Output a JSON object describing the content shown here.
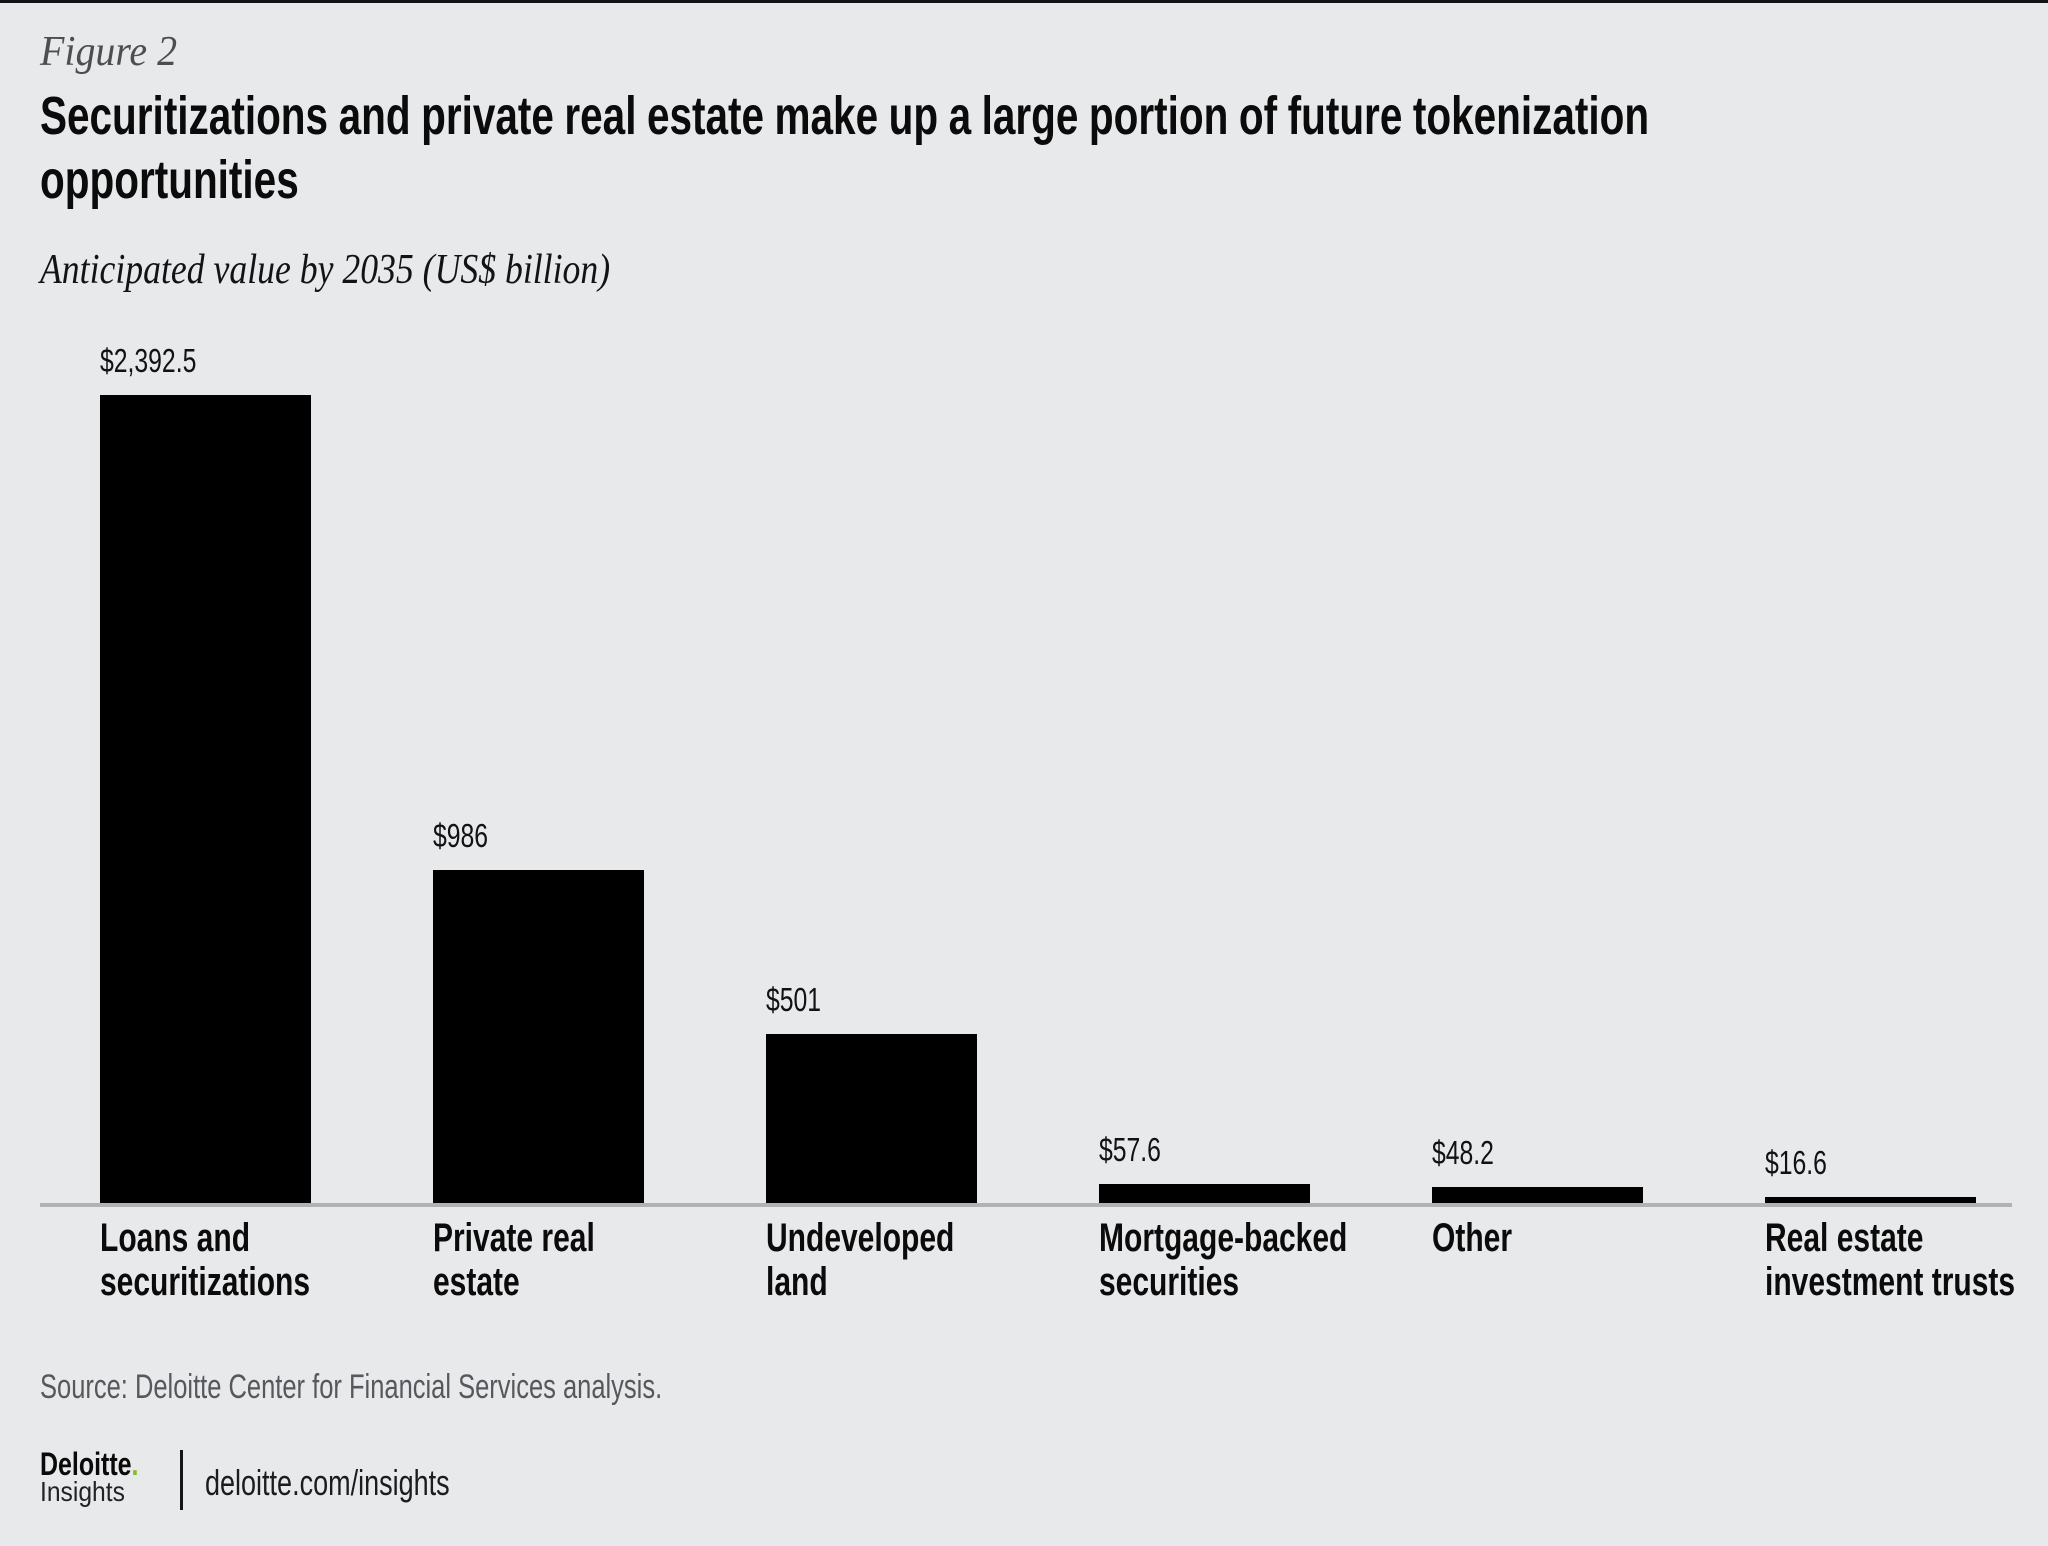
{
  "figure_label": "Figure 2",
  "title": "Securitizations and private real estate make up a large portion of future tokenization opportunities",
  "subtitle": "Anticipated value by 2035 (US$ billion)",
  "chart_data": {
    "type": "bar",
    "title": "Securitizations and private real estate make up a large portion of future tokenization opportunities",
    "subtitle": "Anticipated value by 2035 (US$ billion)",
    "categories": [
      "Loans and securitizations",
      "Private real estate",
      "Undeveloped land",
      "Mortgage-backed securities",
      "Other",
      "Real estate investment trusts"
    ],
    "category_lines": [
      [
        "Loans and",
        "securitizations"
      ],
      [
        "Private real",
        "estate"
      ],
      [
        "Undeveloped",
        "land"
      ],
      [
        "Mortgage-backed",
        "securities"
      ],
      [
        "Other"
      ],
      [
        "Real estate",
        "investment trusts"
      ]
    ],
    "values": [
      2392.5,
      986,
      501,
      57.6,
      48.2,
      16.6
    ],
    "value_labels": [
      "$2,392.5",
      "$986",
      "$501",
      "$57.6",
      "$48.2",
      "$16.6"
    ],
    "xlabel": "",
    "ylabel": "Anticipated value by 2035 (US$ billion)",
    "ylim": [
      0,
      2392.5
    ],
    "bar_color": "#000000",
    "background_color": "#e8e9ea",
    "axis_color": "#b0b2b4",
    "grid": false,
    "legend": false,
    "value_label_position": "above-bar, left-aligned"
  },
  "source": "Source: Deloitte Center for Financial Services analysis.",
  "footer": {
    "brand_primary": "Deloitte",
    "brand_dot": ".",
    "brand_secondary": "Insights",
    "url": "deloitte.com/insights",
    "brand_dot_color": "#86bc25"
  }
}
